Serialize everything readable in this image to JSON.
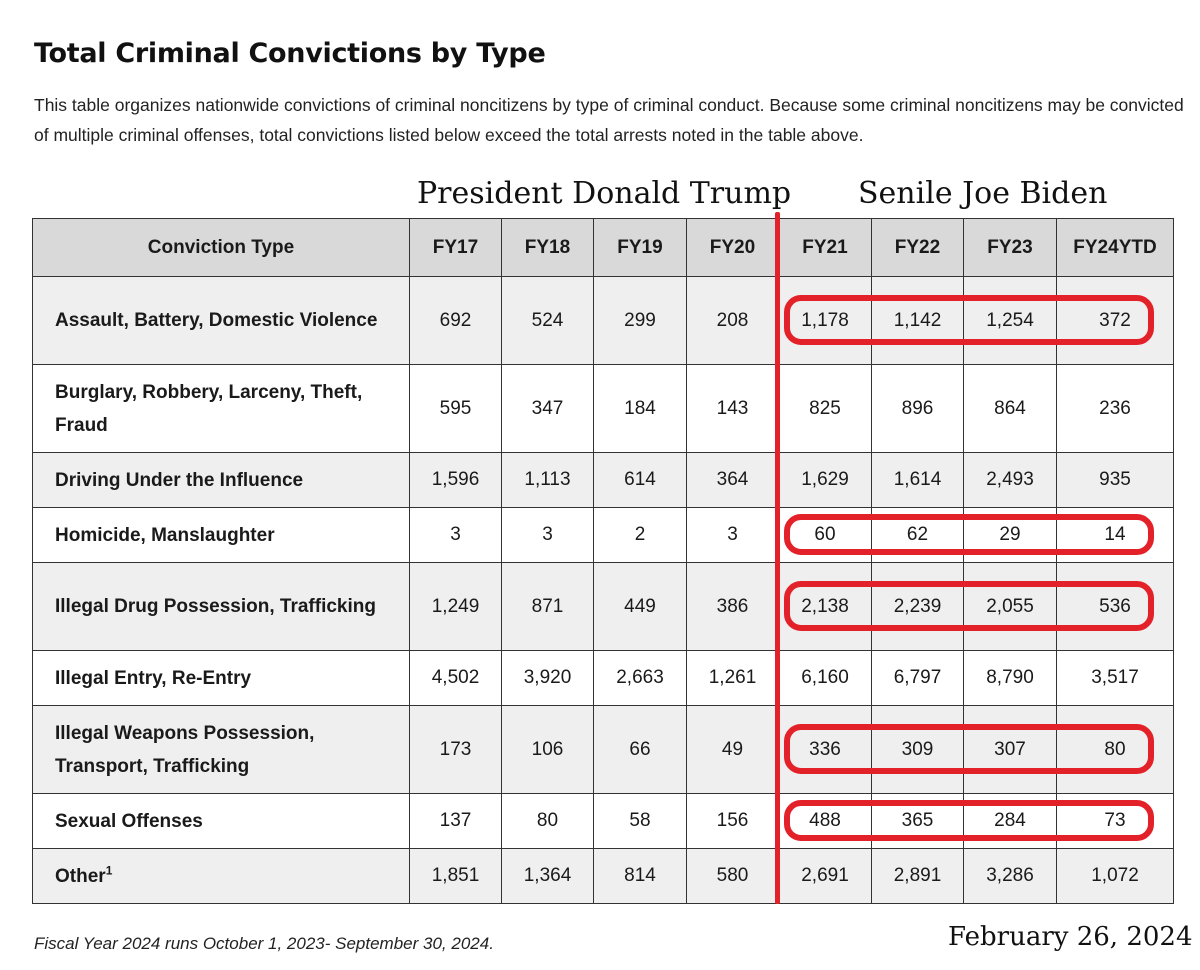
{
  "title": "Total Criminal Convictions by Type",
  "description": "This table organizes nationwide convictions of criminal noncitizens by type of criminal conduct. Because some criminal noncitizens may be convicted of multiple criminal offenses, total convictions listed below exceed the total arrests noted in the table above.",
  "overlay": {
    "left_label": "President Donald Trump",
    "right_label": "Senile Joe Biden",
    "date": "February 26, 2024",
    "accent_color": "#e32129"
  },
  "table": {
    "headers": [
      "Conviction Type",
      "FY17",
      "FY18",
      "FY19",
      "FY20",
      "FY21",
      "FY22",
      "FY23",
      "FY24YTD"
    ],
    "rows": [
      {
        "type": "Assault, Battery, Domestic Violence",
        "values": [
          "692",
          "524",
          "299",
          "208",
          "1,178",
          "1,142",
          "1,254",
          "372"
        ],
        "highlighted": true
      },
      {
        "type": "Burglary, Robbery, Larceny, Theft, Fraud",
        "values": [
          "595",
          "347",
          "184",
          "143",
          "825",
          "896",
          "864",
          "236"
        ],
        "highlighted": false
      },
      {
        "type": "Driving Under the Influence",
        "values": [
          "1,596",
          "1,113",
          "614",
          "364",
          "1,629",
          "1,614",
          "2,493",
          "935"
        ],
        "highlighted": false
      },
      {
        "type": "Homicide, Manslaughter",
        "values": [
          "3",
          "3",
          "2",
          "3",
          "60",
          "62",
          "29",
          "14"
        ],
        "highlighted": true
      },
      {
        "type": "Illegal Drug Possession, Trafficking",
        "values": [
          "1,249",
          "871",
          "449",
          "386",
          "2,138",
          "2,239",
          "2,055",
          "536"
        ],
        "highlighted": true
      },
      {
        "type": "Illegal Entry, Re-Entry",
        "values": [
          "4,502",
          "3,920",
          "2,663",
          "1,261",
          "6,160",
          "6,797",
          "8,790",
          "3,517"
        ],
        "highlighted": false
      },
      {
        "type": "Illegal Weapons Possession, Transport, Trafficking",
        "values": [
          "173",
          "106",
          "66",
          "49",
          "336",
          "309",
          "307",
          "80"
        ],
        "highlighted": true
      },
      {
        "type": "Sexual Offenses",
        "values": [
          "137",
          "80",
          "58",
          "156",
          "488",
          "365",
          "284",
          "73"
        ],
        "highlighted": true
      },
      {
        "type": "Other",
        "footnote_mark": "1",
        "values": [
          "1,851",
          "1,364",
          "814",
          "580",
          "2,691",
          "2,891",
          "3,286",
          "1,072"
        ],
        "highlighted": false
      }
    ]
  },
  "footnote": "Fiscal Year 2024 runs October 1, 2023- September 30, 2024."
}
